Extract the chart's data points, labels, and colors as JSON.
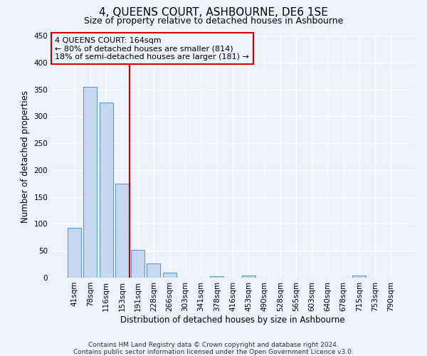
{
  "title": "4, QUEENS COURT, ASHBOURNE, DE6 1SE",
  "subtitle": "Size of property relative to detached houses in Ashbourne",
  "xlabel": "Distribution of detached houses by size in Ashbourne",
  "ylabel": "Number of detached properties",
  "bin_labels": [
    "41sqm",
    "78sqm",
    "116sqm",
    "153sqm",
    "191sqm",
    "228sqm",
    "266sqm",
    "303sqm",
    "341sqm",
    "378sqm",
    "416sqm",
    "453sqm",
    "490sqm",
    "528sqm",
    "565sqm",
    "603sqm",
    "640sqm",
    "678sqm",
    "715sqm",
    "753sqm",
    "790sqm"
  ],
  "bar_values": [
    92,
    355,
    325,
    175,
    52,
    26,
    9,
    0,
    0,
    3,
    0,
    4,
    0,
    0,
    0,
    0,
    0,
    0,
    4,
    0,
    0
  ],
  "bar_color": "#c5d8f0",
  "bar_edge_color": "#5b9bd5",
  "ylim": [
    0,
    450
  ],
  "yticks": [
    0,
    50,
    100,
    150,
    200,
    250,
    300,
    350,
    400,
    450
  ],
  "vline_x": 3.5,
  "vline_color": "#cc0000",
  "annotation_lines": [
    "4 QUEENS COURT: 164sqm",
    "← 80% of detached houses are smaller (814)",
    "18% of semi-detached houses are larger (181) →"
  ],
  "annotation_box_color": "#cc0000",
  "footer_lines": [
    "Contains HM Land Registry data © Crown copyright and database right 2024.",
    "Contains public sector information licensed under the Open Government Licence v3.0."
  ],
  "bg_color": "#eef2f9",
  "grid_color": "#ffffff",
  "title_fontsize": 11,
  "subtitle_fontsize": 9,
  "axis_label_fontsize": 8.5,
  "tick_fontsize": 7.5,
  "annotation_fontsize": 8,
  "footer_fontsize": 6.5
}
